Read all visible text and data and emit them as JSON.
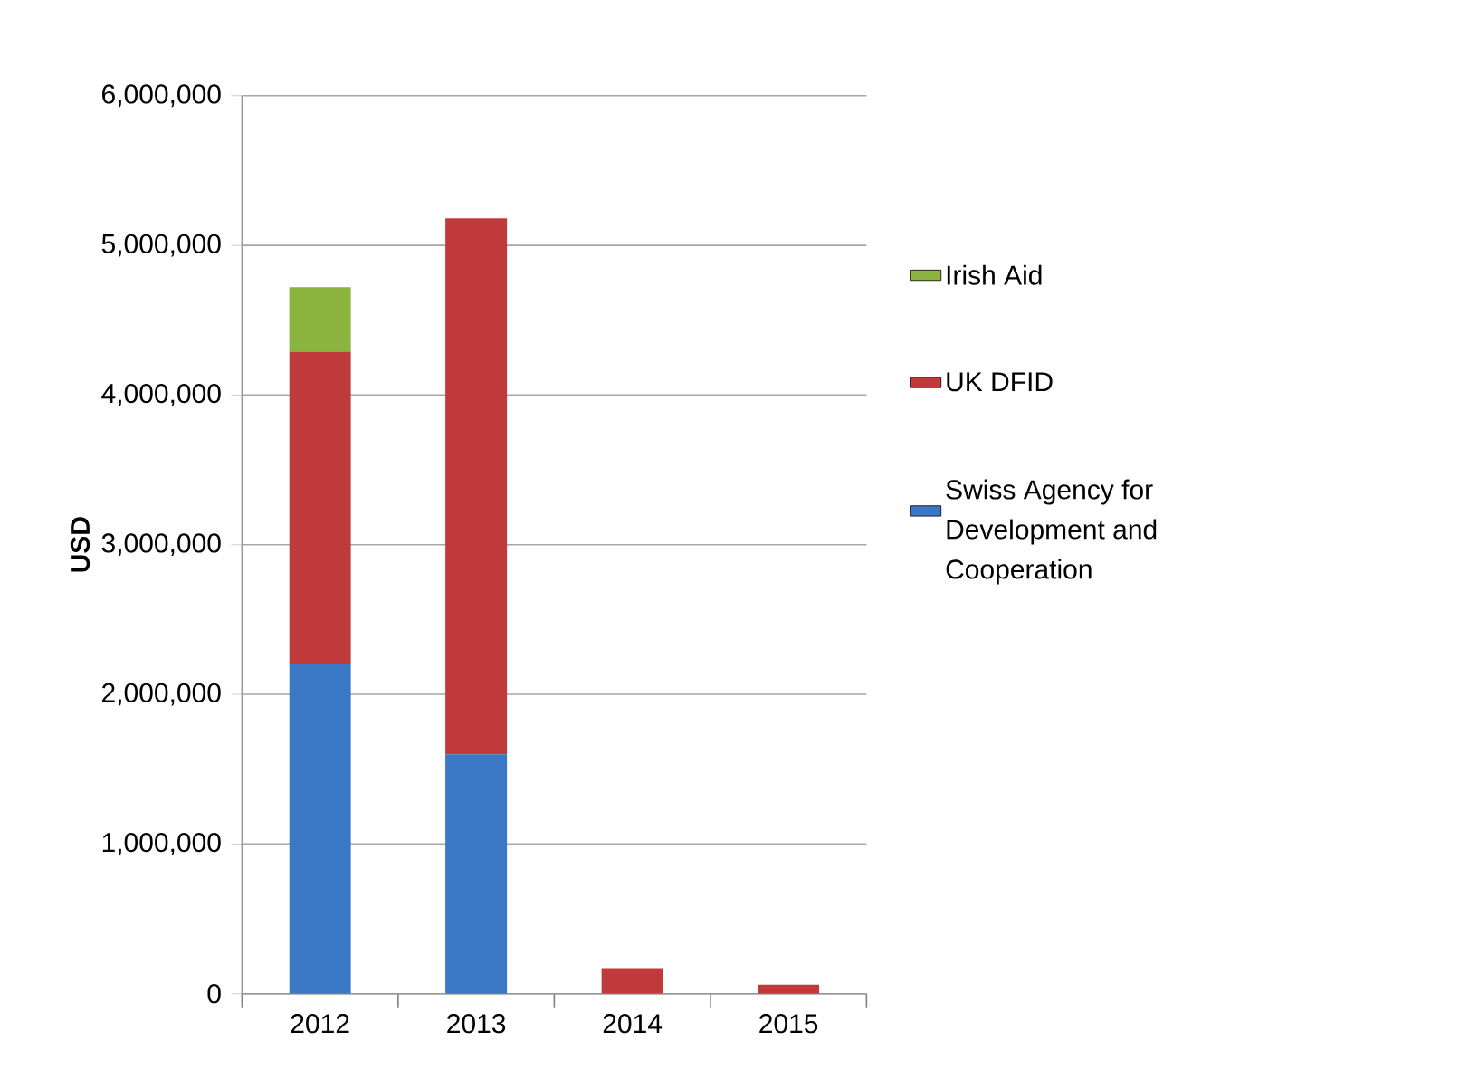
{
  "chart_data": {
    "type": "bar",
    "stacked": true,
    "ylabel": "USD",
    "categories": [
      "2012",
      "2013",
      "2014",
      "2015"
    ],
    "series": [
      {
        "name": "Swiss Agency for Development and Cooperation",
        "color": "#3a78c5",
        "values": [
          2200000,
          1600000,
          null,
          null
        ]
      },
      {
        "name": "UK DFID",
        "color": "#c0393b",
        "values": [
          2090000,
          3580000,
          170000,
          60000
        ]
      },
      {
        "name": "Irish Aid",
        "color": "#8ab43e",
        "values": [
          430000,
          null,
          null,
          null
        ]
      }
    ],
    "ylim": [
      0,
      6000000
    ],
    "yticks": [
      0,
      {
        "value": 1000000,
        "label": "1,000,000"
      },
      {
        "value": 2000000,
        "label": "2,000,000"
      },
      {
        "value": 3000000,
        "label": "3,000,000"
      },
      {
        "value": 4000000,
        "label": "4,000,000"
      },
      {
        "value": 5000000,
        "label": "5,000,000"
      },
      {
        "value": 6000000,
        "label": "6,000,000"
      }
    ],
    "grid": "y",
    "legend": "right"
  }
}
